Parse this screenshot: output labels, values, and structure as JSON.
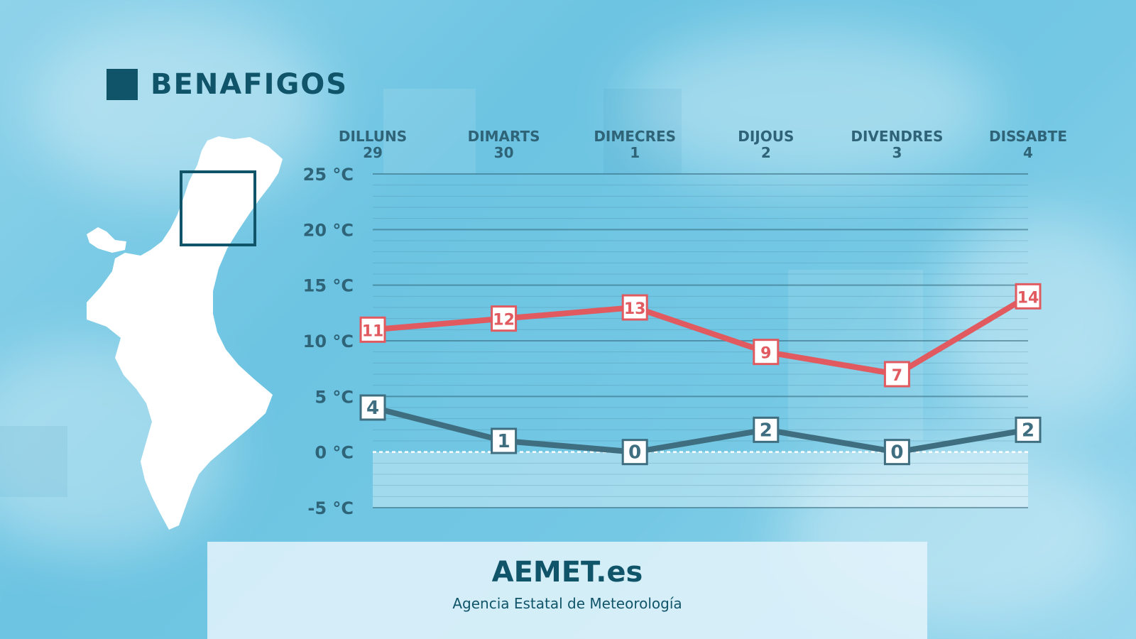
{
  "title": "BENAFIGOS",
  "footer": {
    "brand": "AEMET.es",
    "subtitle": "Agencia Estatal de Meteorología"
  },
  "colors": {
    "accent_dark": "#0f5469",
    "max_series": "#e05a5f",
    "min_series": "#3e6e80",
    "map_fill": "#ffffff"
  },
  "chart_data": {
    "type": "line",
    "categories": [
      {
        "day": "DILLUNS",
        "date": "29"
      },
      {
        "day": "DIMARTS",
        "date": "30"
      },
      {
        "day": "DIMECRES",
        "date": "1"
      },
      {
        "day": "DIJOUS",
        "date": "2"
      },
      {
        "day": "DIVENDRES",
        "date": "3"
      },
      {
        "day": "DISSABTE",
        "date": "4"
      }
    ],
    "series": [
      {
        "key": "max",
        "values": [
          11,
          12,
          13,
          9,
          7,
          14
        ]
      },
      {
        "key": "min",
        "values": [
          4,
          1,
          0,
          2,
          0,
          2
        ]
      }
    ],
    "ylim": [
      -5,
      25
    ],
    "ytick_values": [
      25,
      20,
      15,
      10,
      5,
      0,
      -5
    ],
    "ytick_labels": [
      "25 °C",
      "20 °C",
      "15 °C",
      "10 °C",
      "5 °C",
      "0 °C",
      "-5 °C"
    ],
    "grid": true
  }
}
